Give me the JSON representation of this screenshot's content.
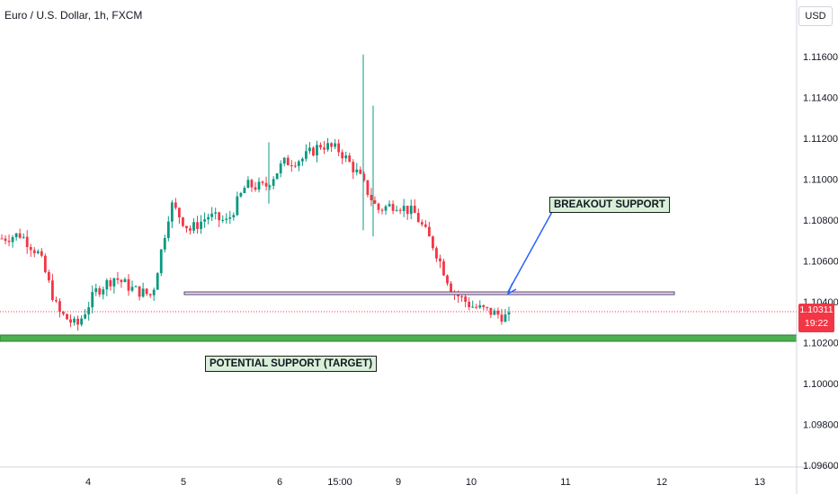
{
  "header": {
    "title": "Euro / U.S. Dollar, 1h, FXCM",
    "currency": "USD"
  },
  "price_tag": {
    "price": "1.10311",
    "countdown": "19:22"
  },
  "annotations": {
    "breakout": "BREAKOUT SUPPORT",
    "target": "POTENTIAL SUPPORT (TARGET)"
  },
  "colors": {
    "up": "#089981",
    "down": "#f23645",
    "support_line": "#4a4a8a",
    "target_zone": "#4caf50",
    "arrow": "#2962ff",
    "callout_bg": "#d8f0d8"
  },
  "chart_data": {
    "type": "candlestick",
    "title": "Euro / U.S. Dollar, 1h, FXCM",
    "ylim": [
      1.096,
      1.118
    ],
    "y_ticks": [
      "1.09600",
      "1.09800",
      "1.10000",
      "1.10200",
      "1.10400",
      "1.10600",
      "1.10800",
      "1.11000",
      "1.11200",
      "1.11400",
      "1.11600"
    ],
    "x_ticks": [
      "4",
      "5",
      "6",
      "15:00",
      "9",
      "10",
      "11",
      "12",
      "13"
    ],
    "last_price": 1.10311,
    "levels": [
      {
        "label": "BREAKOUT SUPPORT",
        "value": 1.1039
      },
      {
        "label": "POTENTIAL SUPPORT (TARGET)",
        "value": 1.1018
      }
    ],
    "series_keyframes": [
      1.1071,
      1.1073,
      1.1063,
      1.1035,
      1.1028,
      1.1045,
      1.1052,
      1.1046,
      1.1043,
      1.1088,
      1.1075,
      1.1082,
      1.1079,
      1.1097,
      1.1096,
      1.1108,
      1.111,
      1.1117,
      1.1114,
      1.1102,
      1.1085,
      1.1088,
      1.1083,
      1.1067,
      1.1045,
      1.1038,
      1.1035,
      1.1032
    ]
  }
}
